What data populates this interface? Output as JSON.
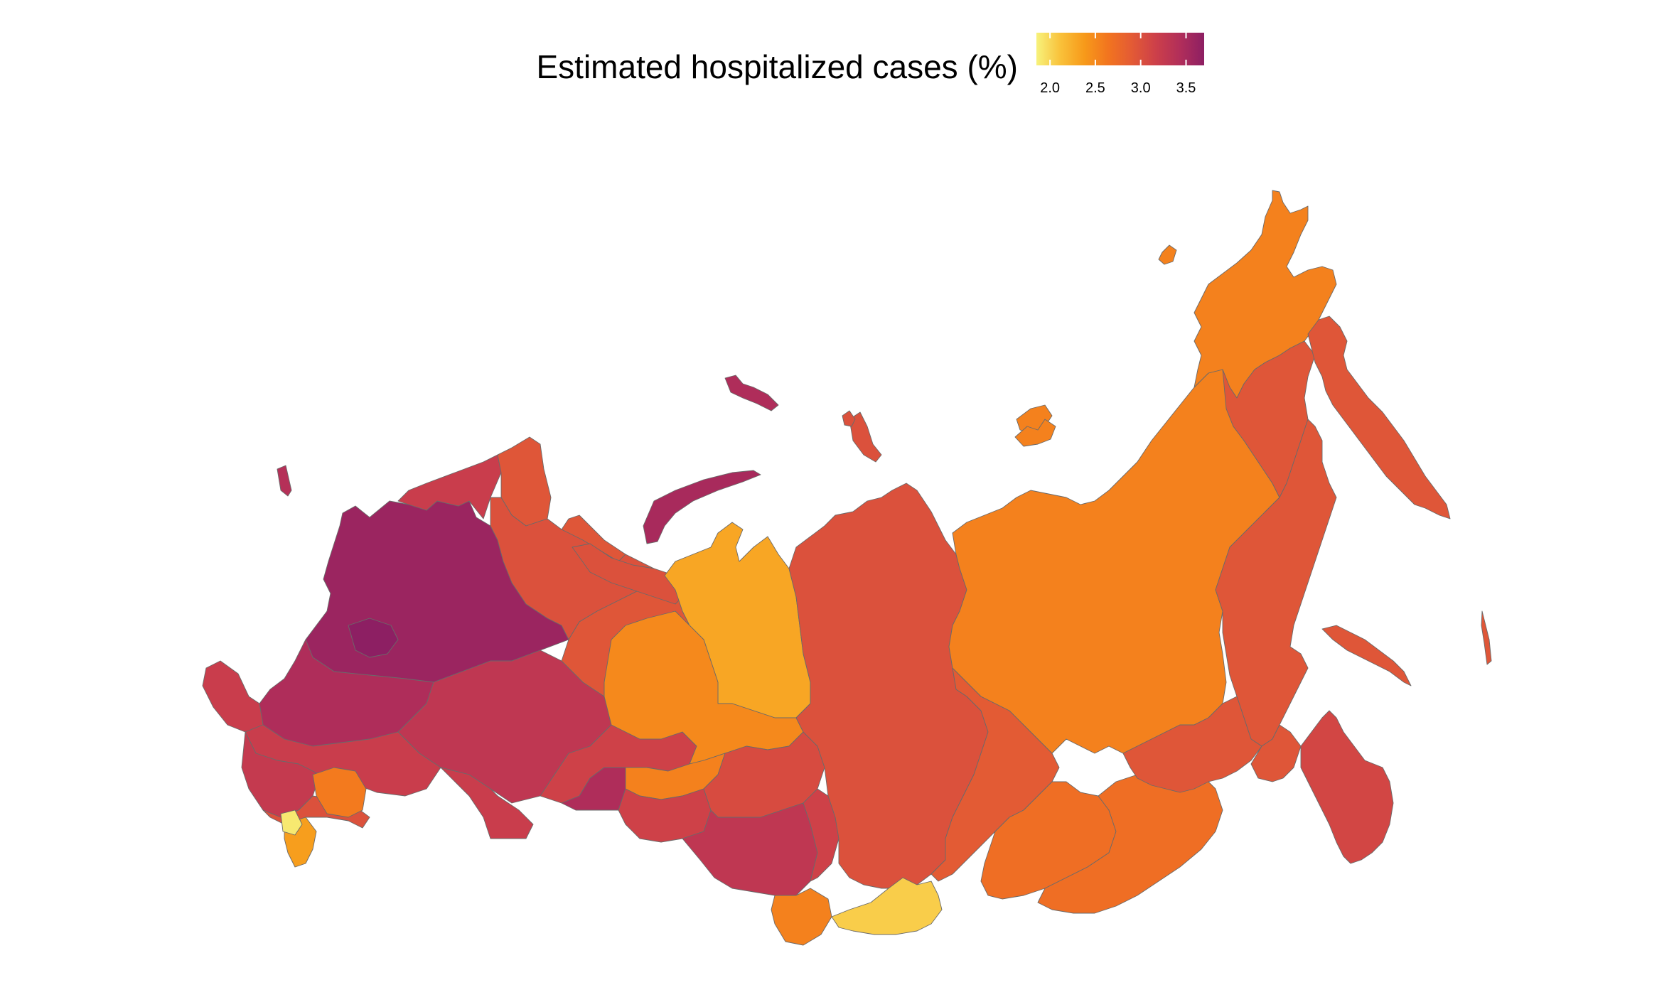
{
  "legend": {
    "title": "Estimated hospitalized cases (%)",
    "min": 1.85,
    "max": 3.7,
    "ticks": [
      {
        "value": 2.0,
        "label": "2.0"
      },
      {
        "value": 2.5,
        "label": "2.5"
      },
      {
        "value": 3.0,
        "label": "3.0"
      },
      {
        "value": 3.5,
        "label": "3.5"
      }
    ],
    "colors": [
      "#f7f27c",
      "#f9c13a",
      "#f79a1a",
      "#f2741f",
      "#e35a35",
      "#cc3f4a",
      "#b12e5a",
      "#8d1f63"
    ]
  },
  "map": {
    "border_color": "#6a6a6a",
    "regions": [
      {
        "name": "far-northwest-arctic",
        "value": 3.6
      },
      {
        "name": "moscow-region",
        "value": 3.7
      },
      {
        "name": "central-west",
        "value": 3.45
      },
      {
        "name": "west-border",
        "value": 3.2
      },
      {
        "name": "volga-central",
        "value": 3.3
      },
      {
        "name": "south-west",
        "value": 3.2
      },
      {
        "name": "crimea-area",
        "value": 3.25
      },
      {
        "name": "caucasus-strip",
        "value": 3.0
      },
      {
        "name": "caucasus-east",
        "value": 2.6
      },
      {
        "name": "dagestan-area",
        "value": 2.35
      },
      {
        "name": "chechnya-area",
        "value": 1.9
      },
      {
        "name": "karelia-murmansk",
        "value": 3.2
      },
      {
        "name": "kola-peninsula",
        "value": 2.95
      },
      {
        "name": "arkhangelsk",
        "value": 3.0
      },
      {
        "name": "komi",
        "value": 2.95
      },
      {
        "name": "ural-north",
        "value": 3.05
      },
      {
        "name": "ural-south",
        "value": 3.15
      },
      {
        "name": "orenburg",
        "value": 3.45
      },
      {
        "name": "novaya-zemlya",
        "value": 3.5
      },
      {
        "name": "franz-josef-land",
        "value": 3.45
      },
      {
        "name": "kaliningrad",
        "value": 3.4
      },
      {
        "name": "khanty-mansi",
        "value": 2.5
      },
      {
        "name": "yamalo-nenets",
        "value": 2.3
      },
      {
        "name": "tyumen-south",
        "value": 2.55
      },
      {
        "name": "omsk",
        "value": 3.15
      },
      {
        "name": "novosibirsk-tomsk",
        "value": 3.05
      },
      {
        "name": "altai-krai",
        "value": 3.3
      },
      {
        "name": "altai-republic",
        "value": 2.55
      },
      {
        "name": "kemerovo",
        "value": 3.15
      },
      {
        "name": "krasnoyarsk",
        "value": 3.0
      },
      {
        "name": "severnaya-zemlya",
        "value": 3.0
      },
      {
        "name": "tuva",
        "value": 2.05
      },
      {
        "name": "khakassia-irkutsk",
        "value": 2.9
      },
      {
        "name": "buryatia",
        "value": 2.7
      },
      {
        "name": "zabaykalsky",
        "value": 2.7
      },
      {
        "name": "sakha-yakutia",
        "value": 2.55
      },
      {
        "name": "new-siberian-islands",
        "value": 2.55
      },
      {
        "name": "chukotka",
        "value": 2.55
      },
      {
        "name": "wrangel-island",
        "value": 2.55
      },
      {
        "name": "magadan",
        "value": 2.95
      },
      {
        "name": "kamchatka",
        "value": 2.95
      },
      {
        "name": "khabarovsk",
        "value": 2.95
      },
      {
        "name": "amur",
        "value": 2.95
      },
      {
        "name": "jewish-ao",
        "value": 2.95
      },
      {
        "name": "primorsky",
        "value": 3.1
      },
      {
        "name": "sakhalin",
        "value": 2.95
      },
      {
        "name": "kuril-islands",
        "value": 2.95
      }
    ]
  }
}
